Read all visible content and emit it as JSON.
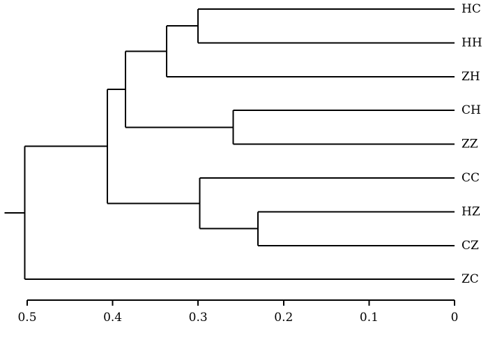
{
  "chart_data": {
    "type": "dendrogram",
    "orientation": "right-to-left",
    "leaves": [
      "HC",
      "HH",
      "ZH",
      "CH",
      "ZZ",
      "CC",
      "HZ",
      "CZ",
      "ZC"
    ],
    "merges": [
      {
        "children": [
          "HC",
          "HH"
        ],
        "height": 0.3
      },
      {
        "children": [
          "HC+HH",
          "ZH"
        ],
        "height": 0.337
      },
      {
        "children": [
          "CH",
          "ZZ"
        ],
        "height": 0.259
      },
      {
        "children": [
          "HC+HH+ZH",
          "CH+ZZ"
        ],
        "height": 0.385
      },
      {
        "children": [
          "HZ",
          "CZ"
        ],
        "height": 0.23
      },
      {
        "children": [
          "CC",
          "HZ+CZ"
        ],
        "height": 0.298
      },
      {
        "children": [
          "HC+HH+ZH+CH+ZZ",
          "CC+HZ+CZ"
        ],
        "height": 0.406
      },
      {
        "children": [
          "HC+HH+ZH+CH+ZZ+CC+HZ+CZ",
          "ZC"
        ],
        "height": 0.503
      }
    ],
    "x_axis": {
      "ticks": [
        0.5,
        0.4,
        0.3,
        0.2,
        0.1,
        0
      ],
      "tick_labels": [
        "0.5",
        "0.4",
        "0.3",
        "0.2",
        "0.1",
        "0"
      ],
      "range": [
        0.5,
        0
      ],
      "reversed": true
    },
    "title": "",
    "xlabel": "",
    "ylabel": "",
    "grid": false,
    "line_color": "#000000"
  }
}
